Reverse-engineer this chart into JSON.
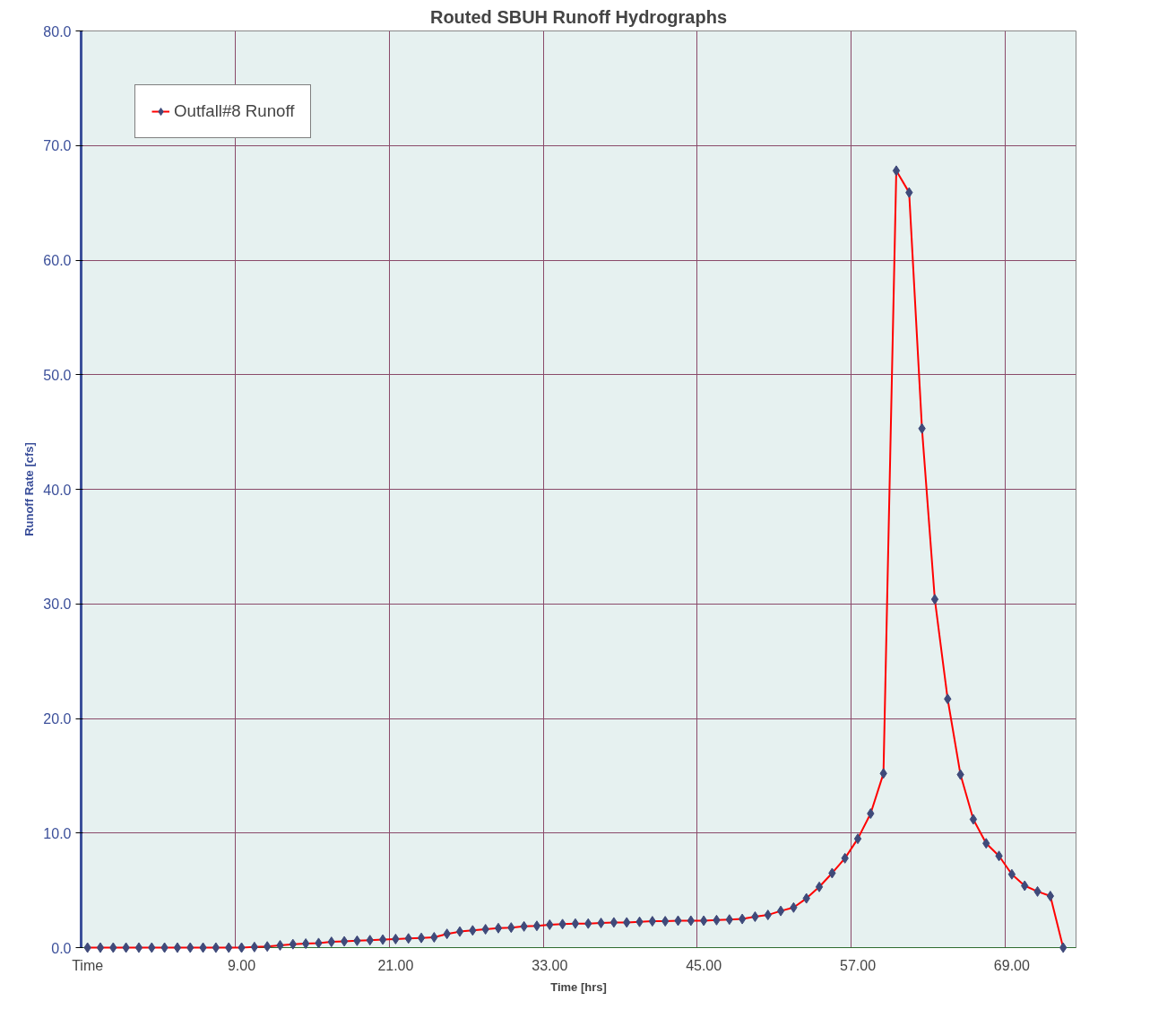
{
  "chart_data": {
    "type": "line",
    "title": "Routed SBUH Runoff Hydrographs",
    "xlabel": "Time [hrs]",
    "ylabel": "Runoff Rate [cfs]",
    "categories": [
      "Time",
      null,
      null,
      null,
      null,
      null,
      null,
      null,
      null,
      null,
      null,
      null,
      "9.00",
      null,
      null,
      null,
      null,
      null,
      null,
      null,
      null,
      null,
      null,
      null,
      "21.00",
      null,
      null,
      null,
      null,
      null,
      null,
      null,
      null,
      null,
      null,
      null,
      "33.00",
      null,
      null,
      null,
      null,
      null,
      null,
      null,
      null,
      null,
      null,
      null,
      "45.00",
      null,
      null,
      null,
      null,
      null,
      null,
      null,
      null,
      null,
      null,
      null,
      "57.00",
      null,
      null,
      null,
      null,
      null,
      null,
      null,
      null,
      null,
      null,
      null,
      "69.00",
      null,
      null,
      null,
      null
    ],
    "series": [
      {
        "name": "Outfall#8 Runoff",
        "color": "#ff0000",
        "values": [
          0,
          0,
          0,
          0,
          0,
          0,
          0,
          0,
          0,
          0,
          0,
          0,
          0,
          0.05,
          0.1,
          0.2,
          0.3,
          0.35,
          0.4,
          0.5,
          0.55,
          0.6,
          0.65,
          0.7,
          0.75,
          0.8,
          0.85,
          0.9,
          1.2,
          1.4,
          1.5,
          1.6,
          1.7,
          1.75,
          1.85,
          1.9,
          2.0,
          2.05,
          2.1,
          2.1,
          2.15,
          2.2,
          2.2,
          2.25,
          2.3,
          2.3,
          2.35,
          2.35,
          2.35,
          2.4,
          2.45,
          2.5,
          2.7,
          2.85,
          3.2,
          3.5,
          4.3,
          5.3,
          6.5,
          7.8,
          9.5,
          11.7,
          15.2,
          67.8,
          65.9,
          45.3,
          30.4,
          21.7,
          15.1,
          11.2,
          9.1,
          8.0,
          6.4,
          5.4,
          4.9,
          4.5,
          0
        ]
      }
    ],
    "ylim": [
      0,
      80
    ],
    "yticks": [
      {
        "value": 0,
        "label": "0.0"
      },
      {
        "value": 10,
        "label": "10.0"
      },
      {
        "value": 20,
        "label": "20.0"
      },
      {
        "value": 30,
        "label": "30.0"
      },
      {
        "value": 40,
        "label": "40.0"
      },
      {
        "value": 50,
        "label": "50.0"
      },
      {
        "value": 60,
        "label": "60.0"
      },
      {
        "value": 70,
        "label": "70.0"
      },
      {
        "value": 80,
        "label": "80.0"
      }
    ],
    "grid": true,
    "legend": "top left",
    "marker": "diamond",
    "line_style": "solid"
  }
}
